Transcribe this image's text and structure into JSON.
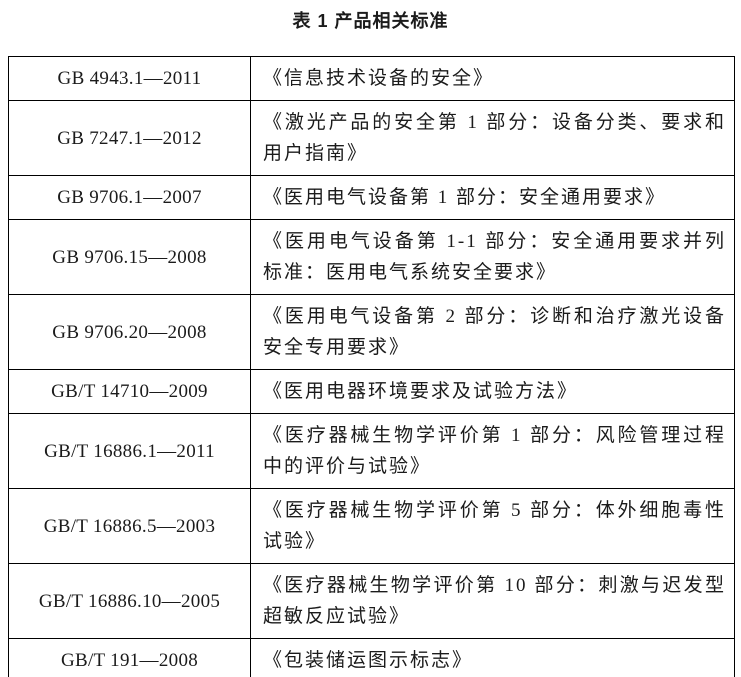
{
  "document": {
    "title": "表 1 产品相关标准"
  },
  "colors": {
    "text": "#1b1b1b",
    "border": "#000000",
    "background": "#ffffff"
  },
  "table": {
    "columns": [
      "standard-code",
      "standard-name"
    ],
    "rows": [
      {
        "code": "GB 4943.1—2011",
        "name": "《信息技术设备的安全》"
      },
      {
        "code": "GB 7247.1—2012",
        "name": "《激光产品的安全第 1 部分：设备分类、要求和用户指南》"
      },
      {
        "code": "GB 9706.1—2007",
        "name": "《医用电气设备第 1 部分：安全通用要求》"
      },
      {
        "code": "GB 9706.15—2008",
        "name": "《医用电气设备第 1-1 部分：安全通用要求并列标准：医用电气系统安全要求》"
      },
      {
        "code": "GB 9706.20—2008",
        "name": "《医用电气设备第 2 部分：诊断和治疗激光设备安全专用要求》"
      },
      {
        "code": "GB/T 14710—2009",
        "name": "《医用电器环境要求及试验方法》"
      },
      {
        "code": "GB/T 16886.1—2011",
        "name": "《医疗器械生物学评价第 1 部分：风险管理过程中的评价与试验》"
      },
      {
        "code": "GB/T 16886.5—2003",
        "name": "《医疗器械生物学评价第 5 部分：体外细胞毒性试验》"
      },
      {
        "code": "GB/T 16886.10—2005",
        "name": "《医疗器械生物学评价第 10 部分：刺激与迟发型超敏反应试验》"
      },
      {
        "code": "GB/T 191—2008",
        "name": "《包装储运图示标志》"
      }
    ]
  }
}
